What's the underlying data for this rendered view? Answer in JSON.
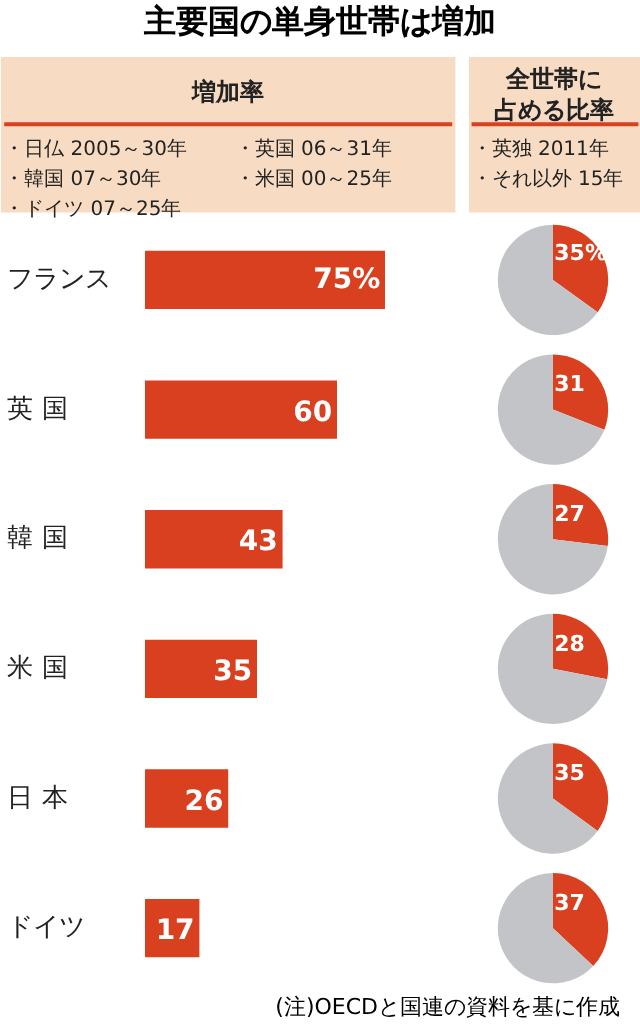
{
  "chart_data": [
    {
      "type": "bar",
      "orientation": "horizontal",
      "title": "主要国の単身世帯は増加",
      "subtitle": "増加率",
      "categories": [
        "フランス",
        "英 国",
        "韓 国",
        "米 国",
        "日 本",
        "ドイツ"
      ],
      "values": [
        75,
        60,
        43,
        35,
        26,
        17
      ],
      "color": "#d9401f",
      "value_labels": [
        "75%",
        "60",
        "43",
        "35",
        "26",
        "17"
      ],
      "annotations": [
        "・日仏 2005～30年",
        "・英国 06～31年",
        "・韓国 07～30年",
        "・米国 00～25年",
        "・ドイツ 07～25年",
        "(注)OECDと国連の資料を基に作成"
      ]
    },
    {
      "type": "pie",
      "title": "全世帯に占める比率",
      "categories": [
        null,
        null
      ],
      "values": [
        35,
        65
      ],
      "colors": [
        "#d9401f",
        "#c2c4c7"
      ],
      "value_labels": [
        "35%",
        null
      ],
      "annotations": [
        "・英独 2011年",
        "・それ以外 15年"
      ]
    },
    {
      "type": "pie",
      "categories": [
        null,
        null
      ],
      "values": [
        31,
        69
      ],
      "colors": [
        "#d9401f",
        "#c2c4c7"
      ],
      "value_labels": [
        "31",
        null
      ]
    },
    {
      "type": "pie",
      "categories": [
        null,
        null
      ],
      "values": [
        27,
        73
      ],
      "colors": [
        "#d9401f",
        "#c2c4c7"
      ],
      "value_labels": [
        "27",
        null
      ]
    },
    {
      "type": "pie",
      "categories": [
        null,
        null
      ],
      "values": [
        28,
        72
      ],
      "colors": [
        "#d9401f",
        "#c2c4c7"
      ],
      "value_labels": [
        "28",
        null
      ]
    },
    {
      "type": "pie",
      "categories": [
        null,
        null
      ],
      "values": [
        35,
        65
      ],
      "colors": [
        "#d9401f",
        "#c2c4c7"
      ],
      "value_labels": [
        "35",
        null
      ]
    },
    {
      "type": "pie",
      "categories": [
        null,
        null
      ],
      "values": [
        37,
        63
      ],
      "colors": [
        "#d9401f",
        "#c2c4c7"
      ],
      "value_labels": [
        "37",
        null
      ]
    }
  ]
}
